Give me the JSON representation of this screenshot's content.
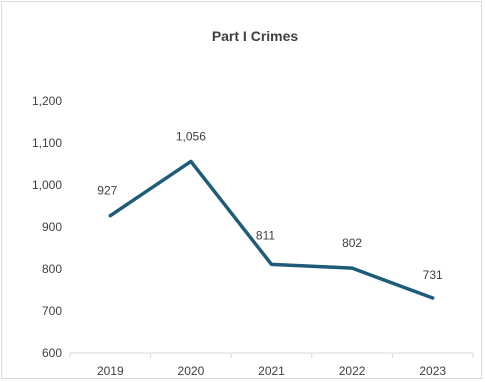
{
  "chart_data": {
    "type": "line",
    "title": "Part I Crimes",
    "categories": [
      "2019",
      "2020",
      "2021",
      "2022",
      "2023"
    ],
    "series": [
      {
        "values": [
          927,
          1056,
          811,
          802,
          731
        ],
        "color": "#1f5c7a"
      }
    ],
    "data_labels": [
      "927",
      "1,056",
      "811",
      "802",
      "731"
    ],
    "ylim": [
      600,
      1200
    ],
    "y_ticks": [
      600,
      700,
      800,
      900,
      1000,
      1100,
      1200
    ],
    "y_tick_labels": [
      "600",
      "700",
      "800",
      "900",
      "1,000",
      "1,100",
      "1,200"
    ],
    "xlabel": "",
    "ylabel": "",
    "grid": false,
    "legend": "none",
    "axis_color": "#d9d9d9",
    "text_color": "#404040"
  }
}
